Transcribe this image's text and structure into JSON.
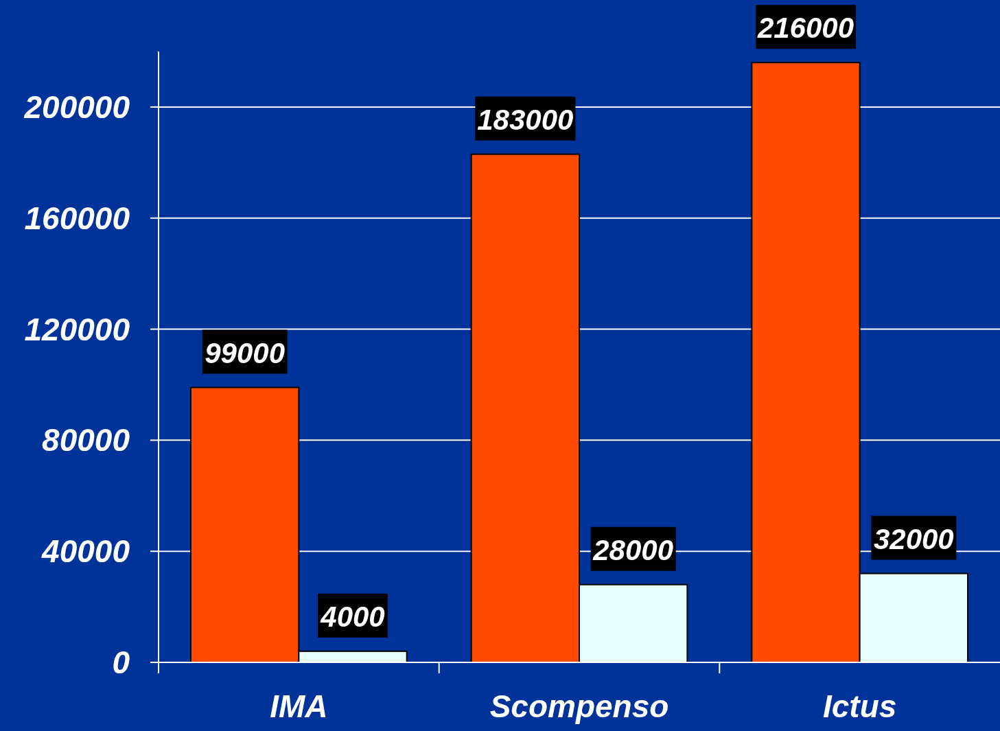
{
  "chart_data": {
    "type": "bar",
    "categories": [
      "IMA",
      "Scompenso",
      "Ictus"
    ],
    "series": [
      {
        "color": "#ff4a00",
        "values": [
          99000,
          183000,
          216000
        ]
      },
      {
        "color": "#e6ffff",
        "values": [
          4000,
          28000,
          32000
        ]
      }
    ],
    "ylim": [
      0,
      220000
    ],
    "yticks": [
      0,
      40000,
      80000,
      120000,
      160000,
      200000
    ],
    "grid": "y",
    "data_labels": true
  }
}
